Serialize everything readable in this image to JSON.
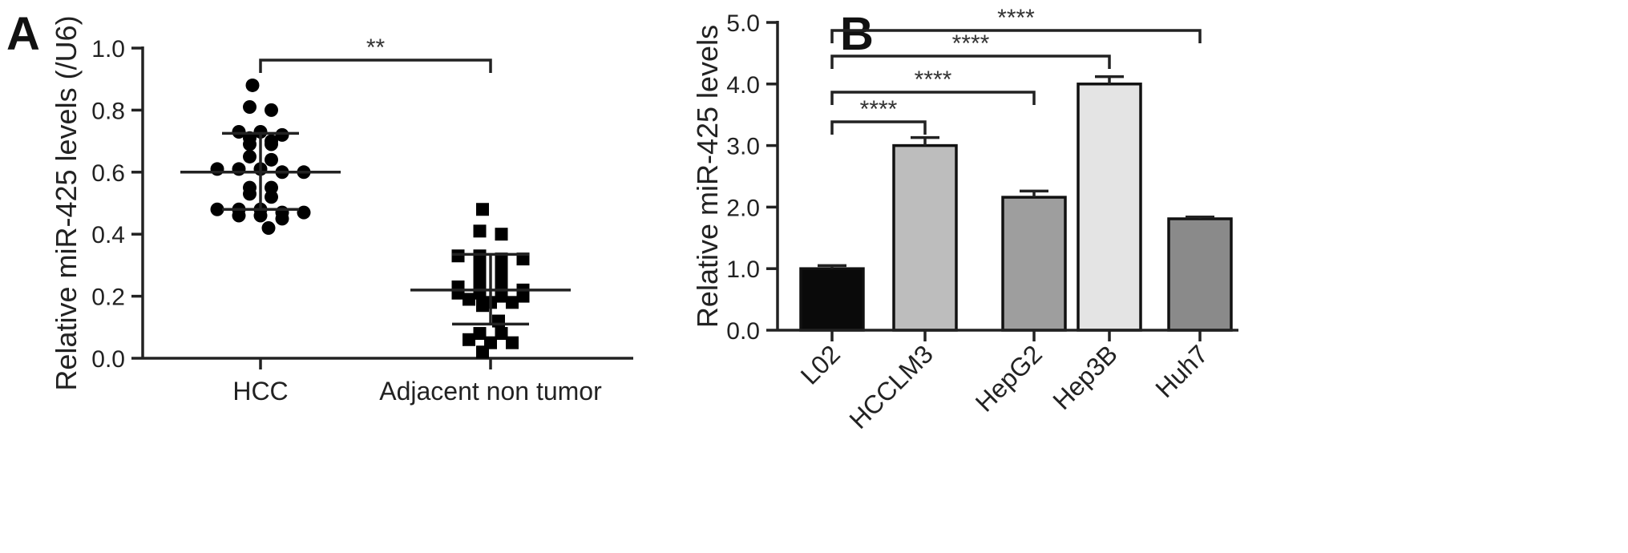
{
  "chart_data": [
    {
      "panel": "A",
      "type": "scatter",
      "xlabel": "",
      "ylabel": "Relative miR-425 levels (/U6)",
      "ylim": [
        0,
        1.0
      ],
      "yticks": [
        "0.0",
        "0.2",
        "0.4",
        "0.6",
        "0.8",
        "1.0"
      ],
      "categories": [
        "HCC",
        "Adjacent non tumor"
      ],
      "series": [
        {
          "marker": "circle",
          "values": [
            0.88,
            0.81,
            0.8,
            0.73,
            0.73,
            0.72,
            0.71,
            0.7,
            0.69,
            0.69,
            0.65,
            0.64,
            0.61,
            0.61,
            0.61,
            0.6,
            0.6,
            0.55,
            0.55,
            0.53,
            0.52,
            0.48,
            0.48,
            0.48,
            0.47,
            0.47,
            0.46,
            0.46,
            0.45,
            0.42
          ],
          "mean": 0.6,
          "sd_low": 0.48,
          "sd_high": 0.725
        },
        {
          "marker": "square",
          "values": [
            0.48,
            0.41,
            0.4,
            0.33,
            0.33,
            0.32,
            0.32,
            0.29,
            0.29,
            0.25,
            0.25,
            0.23,
            0.22,
            0.22,
            0.22,
            0.21,
            0.21,
            0.2,
            0.2,
            0.19,
            0.18,
            0.18,
            0.17,
            0.12,
            0.08,
            0.08,
            0.06,
            0.05,
            0.05,
            0.02
          ],
          "mean": 0.22,
          "sd_low": 0.11,
          "sd_high": 0.335
        }
      ],
      "annotations": [
        {
          "from": 0,
          "to": 1,
          "label": "**"
        }
      ]
    },
    {
      "panel": "B",
      "type": "bar",
      "xlabel": "",
      "ylabel": "Relative miR-425 levels",
      "ylim": [
        0,
        5.0
      ],
      "yticks": [
        "0.0",
        "1.0",
        "2.0",
        "3.0",
        "4.0",
        "5.0"
      ],
      "categories": [
        "L02",
        "HCCLM3",
        "HepG2",
        "Hep3B",
        "Huh7"
      ],
      "values": [
        1.0,
        3.0,
        2.16,
        4.0,
        1.81
      ],
      "errors": [
        0.05,
        0.13,
        0.1,
        0.12,
        0.03
      ],
      "colors": [
        "#0a0a0a",
        "#bdbdbd",
        "#9e9e9e",
        "#e4e4e4",
        "#8a8a8a"
      ],
      "annotations": [
        {
          "from": 0,
          "to": 1,
          "label": "****"
        },
        {
          "from": 0,
          "to": 2,
          "label": "****"
        },
        {
          "from": 0,
          "to": 3,
          "label": "****"
        },
        {
          "from": 0,
          "to": 4,
          "label": "****"
        }
      ]
    }
  ]
}
